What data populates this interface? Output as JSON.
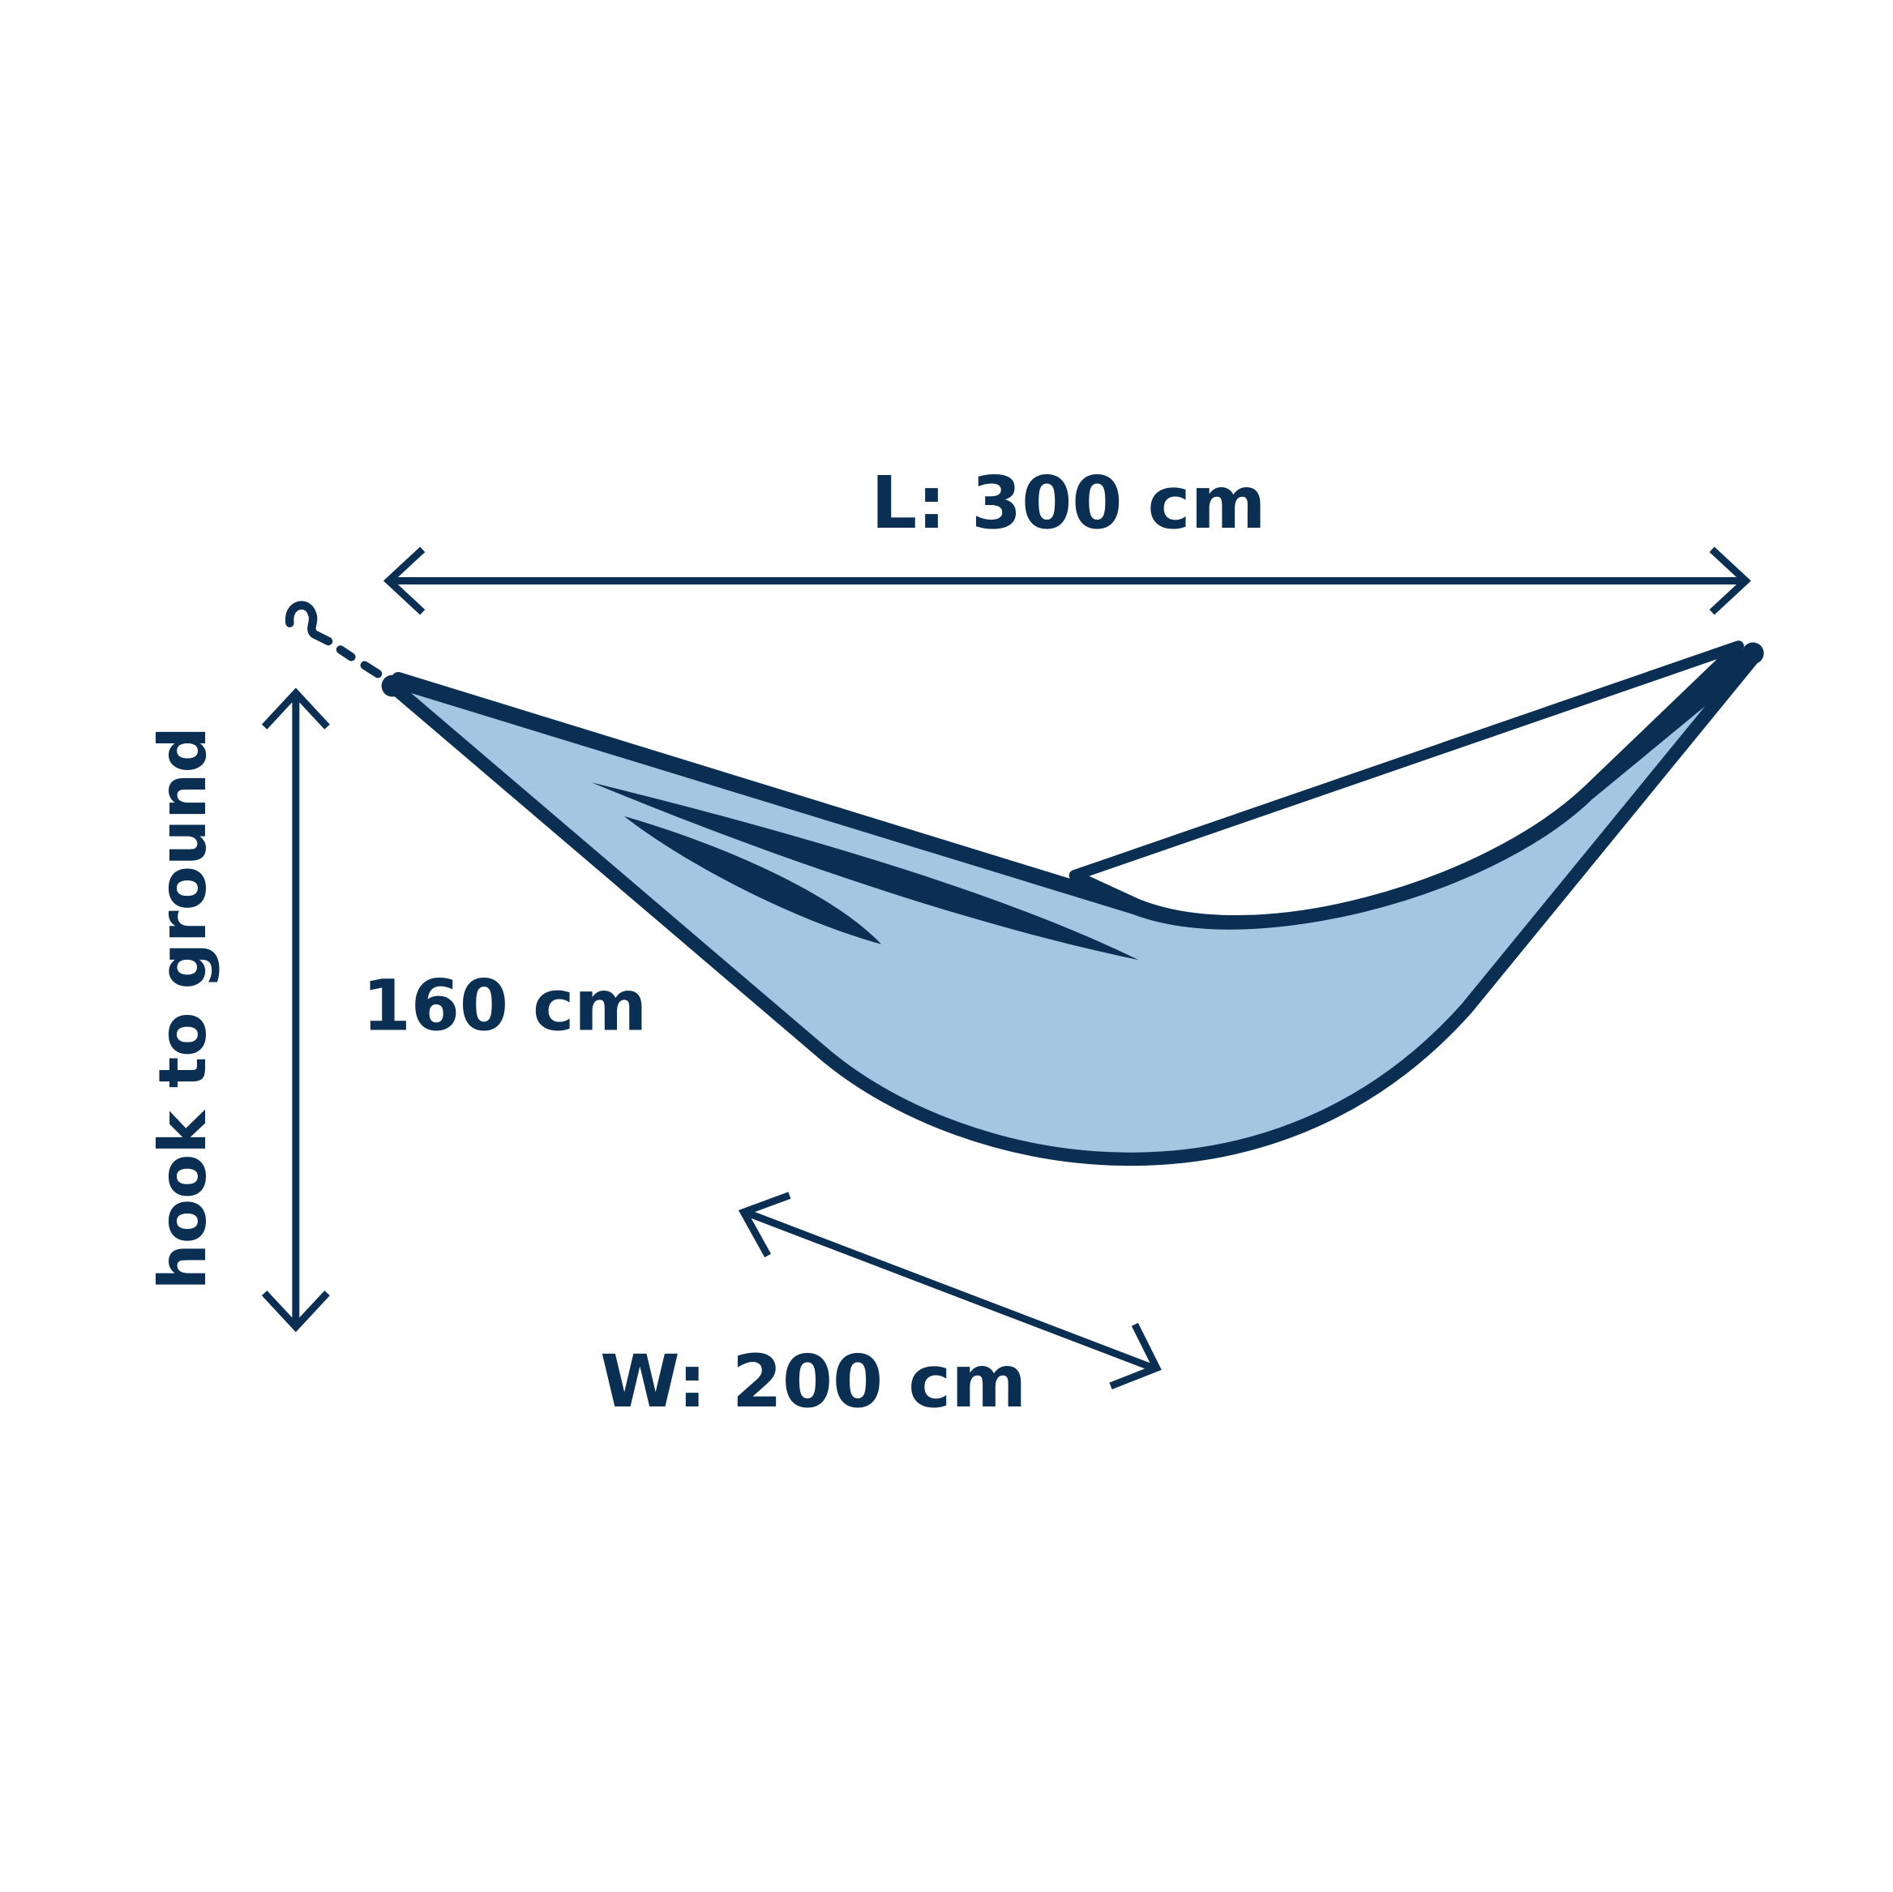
{
  "colors": {
    "outline": "#0b2f52",
    "fabric": "#a3c6e2",
    "background": "#ffffff"
  },
  "dimensions": {
    "length_label": "L: 300 cm",
    "width_label": "W: 200 cm",
    "height_label": "160 cm",
    "height_caption": "hook to ground"
  },
  "icons": [
    "hook-icon",
    "hammock-illustration",
    "double-arrow-icon"
  ]
}
